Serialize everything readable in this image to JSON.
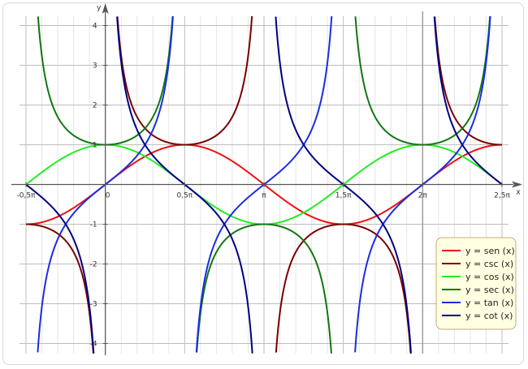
{
  "chart_data": {
    "type": "line",
    "title": "",
    "xlabel": "x",
    "ylabel": "y",
    "xlim_pi": [
      -0.5,
      2.5
    ],
    "ylim": [
      -4.2,
      4.2
    ],
    "grid": true,
    "legend_position": "bottom-right",
    "x_ticks": [
      {
        "value_pi": -0.5,
        "label": "-0,5π"
      },
      {
        "value_pi": 0,
        "label": "0"
      },
      {
        "value_pi": 0.5,
        "label": "0,5π"
      },
      {
        "value_pi": 1,
        "label": "π"
      },
      {
        "value_pi": 1.5,
        "label": "1,5π"
      },
      {
        "value_pi": 2,
        "label": "2π"
      },
      {
        "value_pi": 2.5,
        "label": "2,5π"
      }
    ],
    "y_ticks": [
      {
        "value": 4,
        "label": "4"
      },
      {
        "value": 3,
        "label": "3"
      },
      {
        "value": 2,
        "label": "2"
      },
      {
        "value": 1,
        "label": "1"
      },
      {
        "value": 0,
        "label": "0"
      },
      {
        "value": -1,
        "label": "-1"
      },
      {
        "value": -2,
        "label": "-2"
      },
      {
        "value": -3,
        "label": "-3"
      },
      {
        "value": -4,
        "label": "-4"
      }
    ],
    "series": [
      {
        "name": "y = sen (x)",
        "func": "sin",
        "color": "#ee1111"
      },
      {
        "name": "y = csc (x)",
        "func": "csc",
        "color": "#7a0000"
      },
      {
        "name": "y = cos (x)",
        "func": "cos",
        "color": "#22ee22"
      },
      {
        "name": "y = sec (x)",
        "func": "sec",
        "color": "#117711"
      },
      {
        "name": "y = tan (x)",
        "func": "tan",
        "color": "#1a2ee0"
      },
      {
        "name": "y = cot (x)",
        "func": "cot",
        "color": "#000080"
      }
    ]
  },
  "legend": {
    "background": "#ffffe1",
    "border": "#c8a878"
  }
}
